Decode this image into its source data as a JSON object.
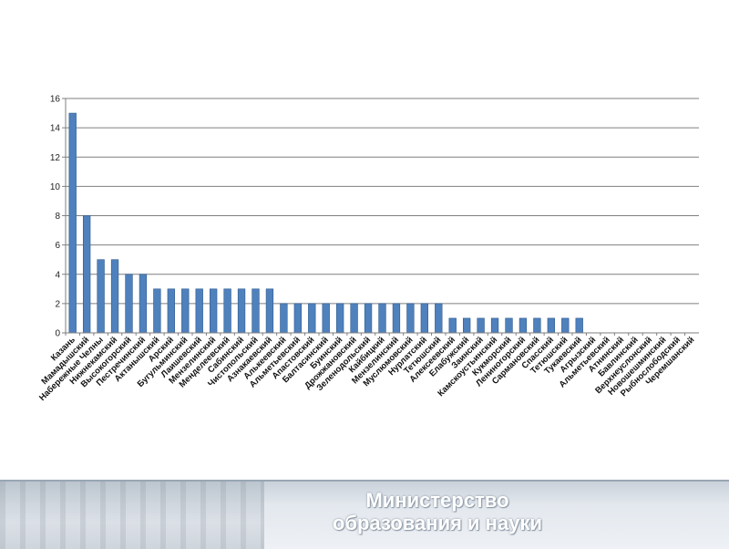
{
  "footer": {
    "line1": "Министерство",
    "line2": "образования и науки"
  },
  "colors": {
    "bar": "#4f81bd",
    "bar_edge": "#2f5b8f",
    "grid": "#7f7f7f",
    "axis": "#7f7f7f"
  },
  "chart_data": {
    "type": "bar",
    "title": "",
    "xlabel": "",
    "ylabel": "",
    "ylim": [
      0,
      16
    ],
    "yticks": [
      0,
      2,
      4,
      6,
      8,
      10,
      12,
      14,
      16
    ],
    "grid": true,
    "categories": [
      "Казань",
      "Мамадышский",
      "Набережные Челны",
      "Нижнекамский",
      "Высокогорский",
      "Пестречинский",
      "Актанышский",
      "Арский",
      "Бугульминский",
      "Лаишевский",
      "Мензелинский",
      "Менделеевский",
      "Сабинский",
      "Чистопольский",
      "Азнакаевский",
      "Алькеевский",
      "Альметьевский",
      "Апастовский",
      "Балтасинский",
      "Буинский",
      "Дрожжановский",
      "Зеленодольский",
      "Кайбицкий",
      "Мензелинский",
      "Муслюмовский",
      "Нурлатский",
      "Тетюшский",
      "Алексеевский",
      "Елабужский",
      "Заинский",
      "Камскоустьинский",
      "Кукморский",
      "Лениногорский",
      "Сармановский",
      "Спасский",
      "Тетюшский",
      "Тукаевский",
      "Агрызский",
      "Альметьевский",
      "Атнинский",
      "Бавлинский",
      "Верхнеуслонский",
      "Новошешминский",
      "Рыбнослободский",
      "Черемшанский"
    ],
    "values": [
      15,
      8,
      5,
      5,
      4,
      4,
      3,
      3,
      3,
      3,
      3,
      3,
      3,
      3,
      3,
      2,
      2,
      2,
      2,
      2,
      2,
      2,
      2,
      2,
      2,
      2,
      2,
      1,
      1,
      1,
      1,
      1,
      1,
      1,
      1,
      1,
      1,
      0,
      0,
      0,
      0,
      0,
      0,
      0,
      0
    ]
  }
}
